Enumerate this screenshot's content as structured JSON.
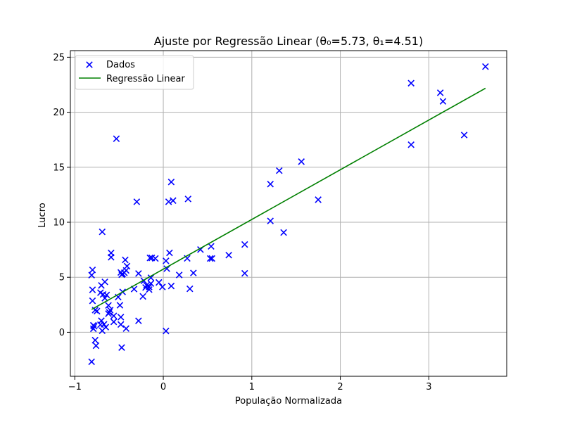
{
  "chart_data": {
    "type": "scatter",
    "title": "Ajuste por Regressão Linear (θ₀=5.73, θ₁=4.51)",
    "xlabel": "População Normalizada",
    "ylabel": "Lucro",
    "xlim": [
      -1.05,
      3.88
    ],
    "ylim": [
      -4.0,
      25.6
    ],
    "xticks": [
      -1,
      0,
      1,
      2,
      3
    ],
    "yticks": [
      0,
      5,
      10,
      15,
      20,
      25
    ],
    "grid": true,
    "legend_position": "top-left",
    "colors": {
      "points": "#0000ff",
      "line": "#008000",
      "grid": "#b0b0b0"
    },
    "series": [
      {
        "name": "Dados",
        "kind": "scatter",
        "marker": "x",
        "points": [
          [
            3.64,
            24.15
          ],
          [
            2.8,
            22.64
          ],
          [
            3.13,
            21.77
          ],
          [
            3.16,
            20.99
          ],
          [
            2.8,
            17.05
          ],
          [
            3.4,
            17.93
          ],
          [
            1.56,
            15.51
          ],
          [
            1.31,
            14.69
          ],
          [
            1.21,
            13.47
          ],
          [
            1.75,
            12.05
          ],
          [
            1.21,
            10.12
          ],
          [
            1.36,
            9.07
          ],
          [
            0.92,
            7.98
          ],
          [
            0.92,
            5.36
          ],
          [
            0.74,
            7.01
          ],
          [
            0.54,
            7.81
          ],
          [
            0.53,
            6.71
          ],
          [
            0.55,
            6.71
          ],
          [
            0.42,
            7.52
          ],
          [
            0.34,
            5.39
          ],
          [
            0.3,
            3.95
          ],
          [
            0.28,
            12.12
          ],
          [
            0.27,
            6.72
          ],
          [
            0.09,
            13.66
          ],
          [
            0.11,
            11.97
          ],
          [
            0.06,
            11.86
          ],
          [
            0.09,
            4.21
          ],
          [
            0.07,
            7.22
          ],
          [
            0.03,
            6.49
          ],
          [
            0.04,
            5.78
          ],
          [
            0.18,
            5.21
          ],
          [
            0.03,
            0.12
          ],
          [
            -0.01,
            4.12
          ],
          [
            -0.05,
            4.53
          ],
          [
            -0.09,
            6.71
          ],
          [
            -0.13,
            6.76
          ],
          [
            -0.15,
            6.76
          ],
          [
            -0.14,
            4.96
          ],
          [
            -0.14,
            4.43
          ],
          [
            -0.16,
            3.88
          ],
          [
            -0.16,
            4.12
          ],
          [
            -0.19,
            4.28
          ],
          [
            -0.2,
            4.07
          ],
          [
            -0.23,
            3.26
          ],
          [
            -0.22,
            4.68
          ],
          [
            -0.28,
            5.34
          ],
          [
            -0.33,
            3.93
          ],
          [
            -0.28,
            1.04
          ],
          [
            -0.3,
            11.86
          ],
          [
            -0.41,
            6.01
          ],
          [
            -0.42,
            5.62
          ],
          [
            -0.43,
            6.58
          ],
          [
            -0.44,
            5.41
          ],
          [
            -0.46,
            5.3
          ],
          [
            -0.48,
            5.44
          ],
          [
            -0.47,
            5.24
          ],
          [
            -0.46,
            3.67
          ],
          [
            -0.49,
            2.46
          ],
          [
            -0.48,
            1.38
          ],
          [
            -0.48,
            0.71
          ],
          [
            -0.47,
            -1.39
          ],
          [
            -0.42,
            0.34
          ],
          [
            -0.53,
            17.59
          ],
          [
            -0.51,
            3.2
          ],
          [
            -0.59,
            7.21
          ],
          [
            -0.59,
            6.82
          ],
          [
            -0.56,
            1.49
          ],
          [
            -0.56,
            0.95
          ],
          [
            -0.6,
            2.01
          ],
          [
            -0.61,
            1.81
          ],
          [
            -0.62,
            2.44
          ],
          [
            -0.64,
            3.39
          ],
          [
            -0.66,
            3.1
          ],
          [
            -0.66,
            4.58
          ],
          [
            -0.69,
            9.13
          ],
          [
            -0.7,
            4.26
          ],
          [
            -0.71,
            3.6
          ],
          [
            -0.68,
            3.44
          ],
          [
            -0.62,
            1.69
          ],
          [
            -0.65,
            0.47
          ],
          [
            -0.67,
            0.72
          ],
          [
            -0.7,
            1.05
          ],
          [
            -0.71,
            0.69
          ],
          [
            -0.69,
            0.14
          ],
          [
            -0.75,
            1.92
          ],
          [
            -0.77,
            2.02
          ],
          [
            -0.78,
            0.55
          ],
          [
            -0.79,
            0.63
          ],
          [
            -0.79,
            0.32
          ],
          [
            -0.77,
            -0.72
          ],
          [
            -0.76,
            -1.22
          ],
          [
            -0.8,
            5.67
          ],
          [
            -0.81,
            5.19
          ],
          [
            -0.8,
            3.86
          ],
          [
            -0.8,
            2.86
          ],
          [
            -0.81,
            -2.68
          ]
        ]
      },
      {
        "name": "Regressão Linear",
        "kind": "line",
        "points": [
          [
            -0.81,
            2.08
          ],
          [
            3.64,
            22.18
          ]
        ]
      }
    ]
  }
}
